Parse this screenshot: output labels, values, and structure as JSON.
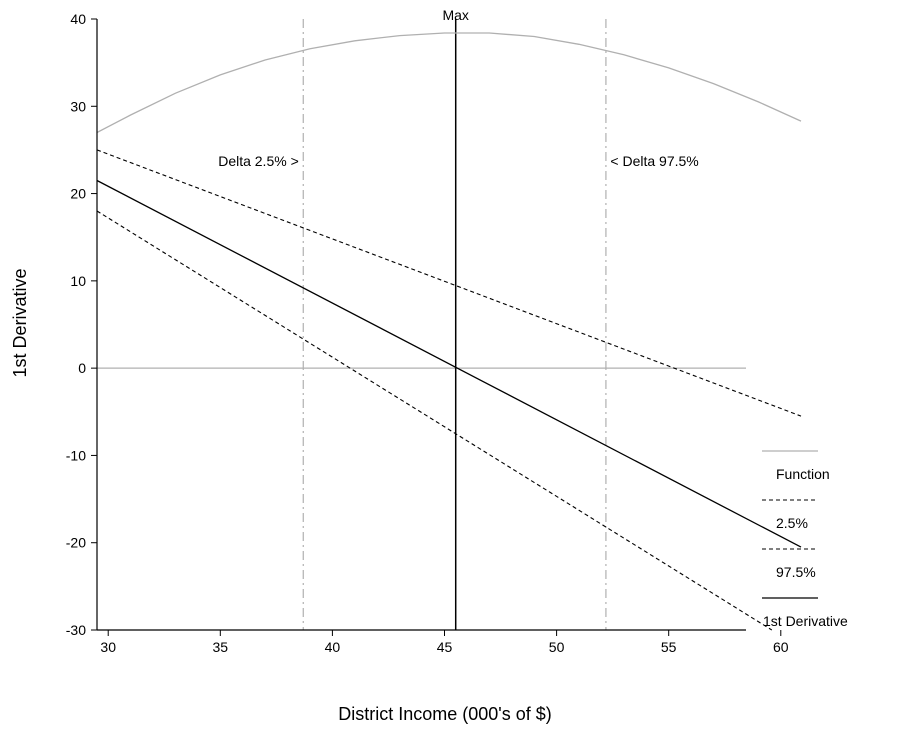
{
  "chart_data": {
    "type": "line",
    "title": "",
    "xlabel": "District Income (000's of $)",
    "ylabel": "1st Derivative",
    "xlim": [
      29.5,
      60.5
    ],
    "ylim": [
      -30,
      40
    ],
    "x_ticks": [
      30,
      35,
      40,
      45,
      50,
      55,
      60
    ],
    "y_ticks": [
      -30,
      -20,
      -10,
      0,
      10,
      20,
      30,
      40
    ],
    "grid": false,
    "legend_position": "right",
    "series": [
      {
        "name": "Function",
        "style": "solid",
        "color": "#b0b0b0",
        "x": [
          29.5,
          31,
          33,
          35,
          37,
          39,
          41,
          43,
          45,
          47,
          49,
          51,
          53,
          55,
          57,
          59,
          60.9
        ],
        "y": [
          27.0,
          29.0,
          31.5,
          33.6,
          35.3,
          36.6,
          37.5,
          38.1,
          38.4,
          38.4,
          38.0,
          37.1,
          35.9,
          34.4,
          32.6,
          30.5,
          28.3
        ]
      },
      {
        "name": "2.5%",
        "style": "dashed",
        "color": "#000000",
        "x": [
          29.5,
          60.9
        ],
        "y": [
          25.0,
          -5.5
        ]
      },
      {
        "name": "97.5%",
        "style": "dashed",
        "color": "#000000",
        "x": [
          29.5,
          59.6
        ],
        "y": [
          18.0,
          -30.0
        ]
      },
      {
        "name": "1st Derivative",
        "style": "solid",
        "color": "#000000",
        "x": [
          29.5,
          60.9
        ],
        "y": [
          21.5,
          -20.5
        ]
      }
    ],
    "vertical_lines": [
      {
        "x": 38.7,
        "style": "dashdot",
        "color": "#b0b0b0"
      },
      {
        "x": 45.5,
        "style": "solid",
        "color": "#000000"
      },
      {
        "x": 52.2,
        "style": "dashdot",
        "color": "#b0b0b0"
      }
    ],
    "horizontal_lines": [
      {
        "y": 0,
        "style": "solid",
        "color": "#b0b0b0"
      }
    ],
    "annotations": [
      {
        "text": "Max",
        "x": 45.5,
        "y": 40
      },
      {
        "text": "Delta 2.5% >",
        "x": 38.5,
        "y": 25
      },
      {
        "text": "< Delta 97.5%",
        "x": 52.4,
        "y": 25
      }
    ]
  }
}
